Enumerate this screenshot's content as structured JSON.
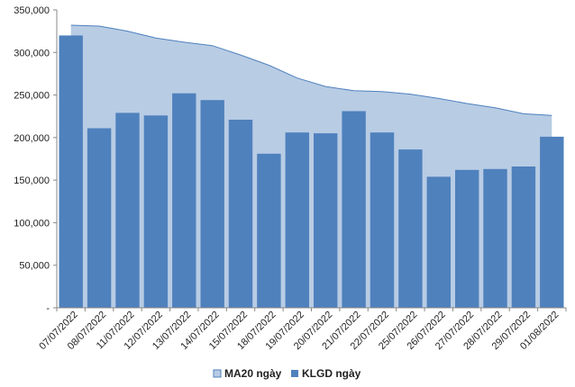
{
  "chart_data": {
    "type": "bar",
    "categories": [
      "07/07/2022",
      "08/07/2022",
      "11/07/2022",
      "12/07/2022",
      "13/07/2022",
      "14/07/2022",
      "15/07/2022",
      "18/07/2022",
      "19/07/2022",
      "20/07/2022",
      "21/07/2022",
      "22/07/2022",
      "25/07/2022",
      "26/07/2022",
      "27/07/2022",
      "28/07/2022",
      "29/07/2022",
      "01/08/2022"
    ],
    "series": [
      {
        "name": "MA20 ngày",
        "type": "area",
        "color": "#b8cce4",
        "stroke": "#4f81bd",
        "values": [
          332000,
          331000,
          325000,
          317000,
          312000,
          308000,
          297000,
          285000,
          270000,
          260000,
          255000,
          254000,
          251000,
          246000,
          240000,
          235000,
          228000,
          226000
        ]
      },
      {
        "name": "KLGD ngày",
        "type": "bar",
        "color": "#4f81bd",
        "values": [
          320000,
          211000,
          229000,
          226000,
          252000,
          244000,
          221000,
          181000,
          206000,
          205000,
          231000,
          206000,
          186000,
          154000,
          162000,
          163000,
          166000,
          201000
        ]
      }
    ],
    "y_ticks": [
      "-",
      "50,000",
      "100,000",
      "150,000",
      "200,000",
      "250,000",
      "300,000",
      "350,000"
    ],
    "ylim": [
      0,
      350000
    ],
    "grid": false,
    "legend_position": "bottom"
  }
}
